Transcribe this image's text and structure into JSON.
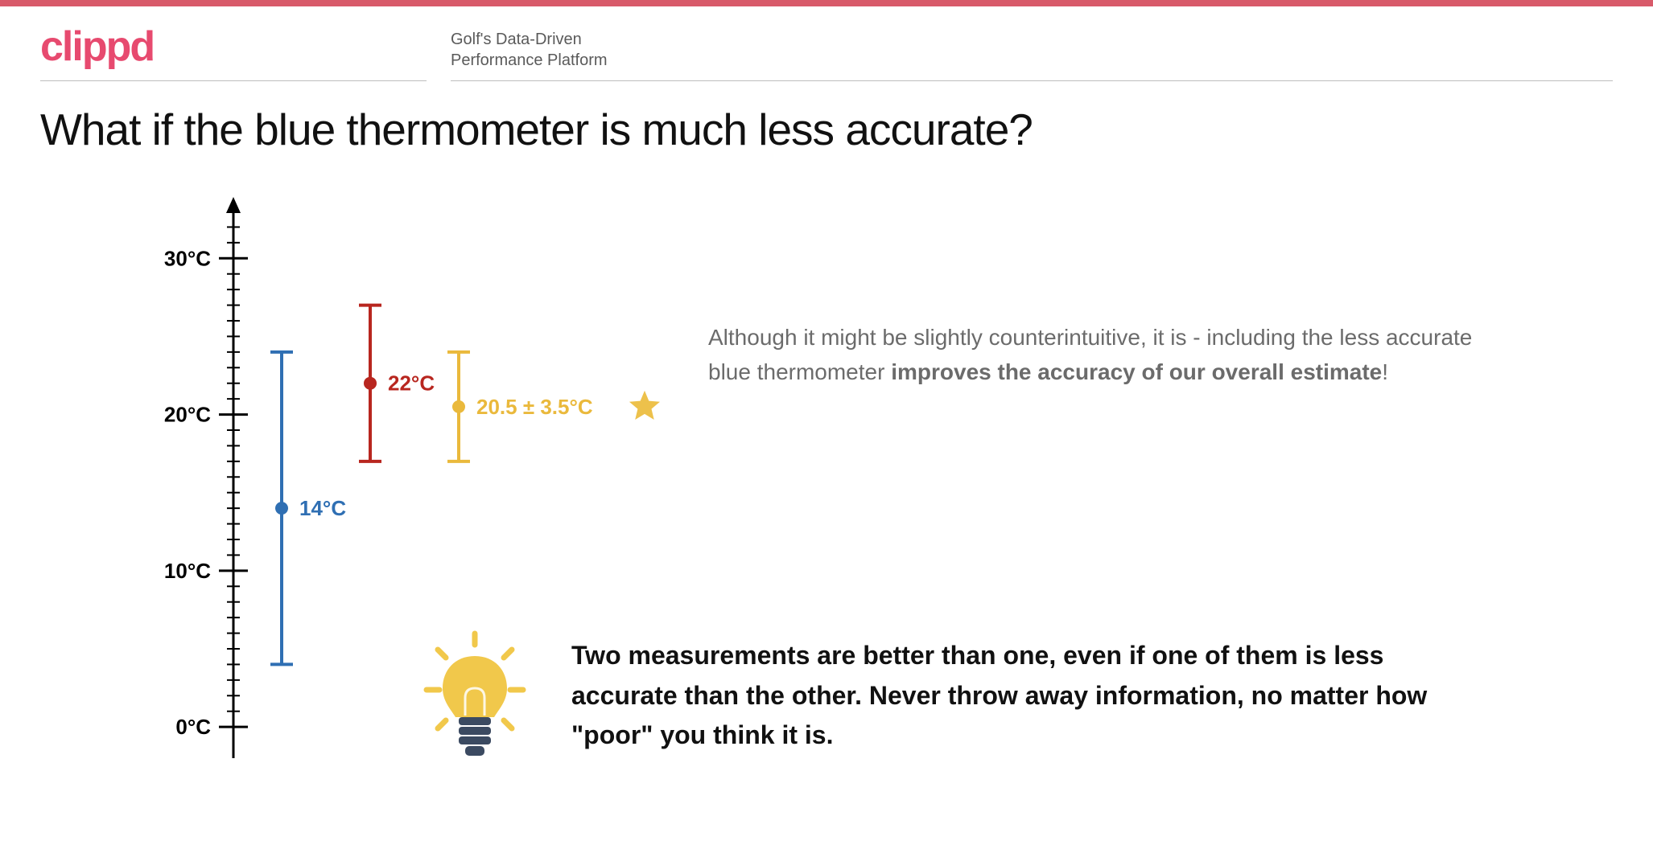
{
  "accent_bar_color": "#d85a6a",
  "logo": {
    "text": "clippd",
    "color": "#e74a6f"
  },
  "tagline": {
    "line1": "Golf's Data-Driven",
    "line2": "Performance Platform"
  },
  "title": "What if the blue thermometer is much less accurate?",
  "chart": {
    "type": "errorbar",
    "axis_color": "#000000",
    "axis_stroke": 3,
    "y_min": -2,
    "y_max": 33,
    "major_ticks": [
      {
        "v": 0,
        "label": "0°C"
      },
      {
        "v": 10,
        "label": "10°C"
      },
      {
        "v": 20,
        "label": "20°C"
      },
      {
        "v": 30,
        "label": "30°C"
      }
    ],
    "minor_tick_step": 1,
    "tick_label_fontsize": 26,
    "tick_label_weight": 700,
    "series": [
      {
        "name": "blue",
        "x": 0,
        "value": 14,
        "err": 10,
        "color": "#2f6fb3",
        "label": "14°C",
        "label_fontsize": 26,
        "label_weight": 700,
        "point_r": 8,
        "cap_w": 28,
        "line_w": 4
      },
      {
        "name": "red",
        "x": 1,
        "value": 22,
        "err": 5,
        "color": "#b8261f",
        "label": "22°C",
        "label_fontsize": 26,
        "label_weight": 700,
        "point_r": 8,
        "cap_w": 28,
        "line_w": 4
      },
      {
        "name": "combined",
        "x": 2,
        "value": 20.5,
        "err": 3.5,
        "color": "#eab93c",
        "label": "20.5 ± 3.5°C",
        "label_fontsize": 26,
        "label_weight": 700,
        "point_r": 8,
        "cap_w": 28,
        "line_w": 4,
        "star": true,
        "star_color": "#edc14b"
      }
    ],
    "x_spacing": 110,
    "x_offset_from_axis": 60
  },
  "explain": {
    "pre": "Although it might be slightly counterintuitive, it is - including the less accurate blue thermometer ",
    "bold": "improves the accuracy of our overall estimate",
    "post": "!"
  },
  "bulb": {
    "bulb_color": "#f1c84b",
    "base_color": "#3b4a61",
    "ray_color": "#f1c84b"
  },
  "takeaway": "Two measurements are better than one, even if one of them is less accurate than the other. Never throw away information, no matter how \"poor\" you think it is."
}
